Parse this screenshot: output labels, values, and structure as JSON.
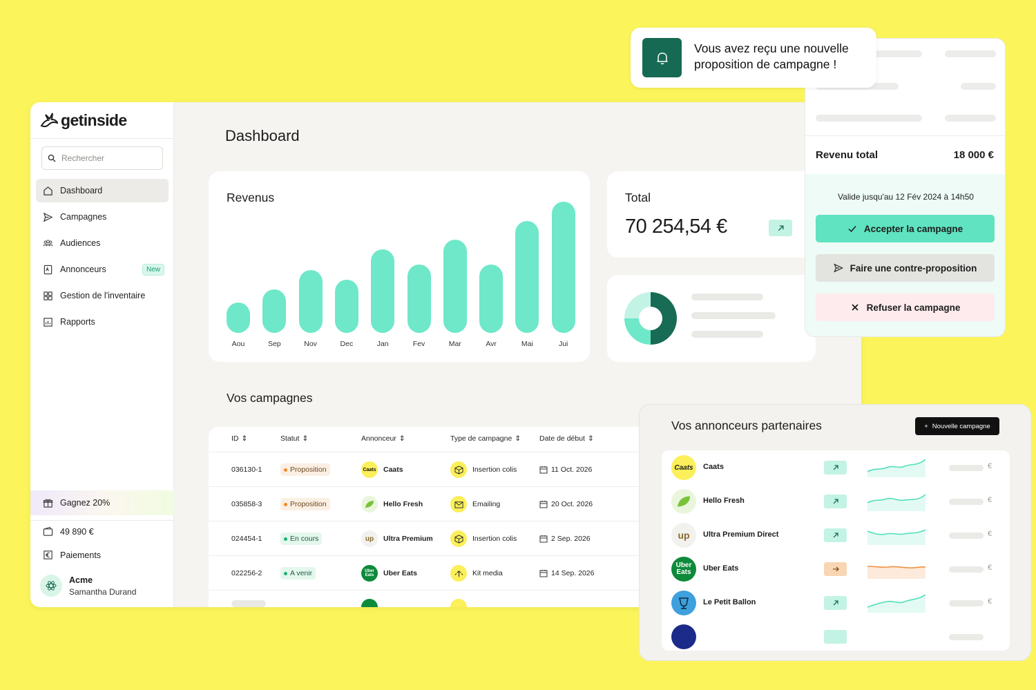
{
  "brand": {
    "name": "getinside"
  },
  "search": {
    "placeholder": "Rechercher"
  },
  "nav": [
    {
      "label": "Dashboard",
      "icon": "home-icon",
      "active": true
    },
    {
      "label": "Campagnes",
      "icon": "send-icon"
    },
    {
      "label": "Audiences",
      "icon": "audience-icon"
    },
    {
      "label": "Annonceurs",
      "icon": "advertiser-icon",
      "badge": "New"
    },
    {
      "label": "Gestion de l'inventaire",
      "icon": "grid-icon"
    },
    {
      "label": "Rapports",
      "icon": "report-icon"
    }
  ],
  "promo": {
    "label": "Gagnez 20%"
  },
  "balance": {
    "label": "49 890 €"
  },
  "payments": {
    "label": "Paiements"
  },
  "user": {
    "org": "Acme",
    "name": "Samantha Durand"
  },
  "page": {
    "title": "Dashboard"
  },
  "revenue": {
    "title": "Revenus"
  },
  "chart_data": {
    "type": "bar",
    "categories": [
      "Aou",
      "Sep",
      "Nov",
      "Dec",
      "Jan",
      "Fev",
      "Mar",
      "Avr",
      "Mai",
      "Jui"
    ],
    "values": [
      22,
      32,
      46,
      39,
      61,
      50,
      68,
      50,
      82,
      96
    ],
    "ylim": [
      0,
      100
    ],
    "color": "#6ee8c9"
  },
  "total": {
    "title": "Total",
    "value": "70 254,54 €"
  },
  "donut": {
    "values": [
      50,
      25,
      25
    ],
    "colors": [
      "#186b54",
      "#6ee8c9",
      "#c3f3e5"
    ]
  },
  "campaigns": {
    "title": "Vos campagnes",
    "columns": [
      "ID",
      "Statut",
      "Annonceur",
      "Type de campagne",
      "Date de début"
    ],
    "rows": [
      {
        "id": "036130-1",
        "status": "Proposition",
        "status_kind": "prop",
        "advertiser": "Caats",
        "type": "Insertion colis",
        "date": "11 Oct. 2026"
      },
      {
        "id": "035858-3",
        "status": "Proposition",
        "status_kind": "prop",
        "advertiser": "Hello Fresh",
        "type": "Emailing",
        "date": "20 Oct. 2026"
      },
      {
        "id": "024454-1",
        "status": "En cours",
        "status_kind": "cours",
        "advertiser": "Ultra Premium",
        "type": "Insertion colis",
        "date": "2 Sep. 2026"
      },
      {
        "id": "022256-2",
        "status": "A venir",
        "status_kind": "avenir",
        "advertiser": "Uber Eats",
        "type": "Kit media",
        "date": "14 Sep. 2026"
      }
    ]
  },
  "notification": {
    "text": "Vous avez reçu une nouvelle proposition de campagne !"
  },
  "proposal": {
    "revenue_label": "Revenu total",
    "revenue_value": "18 000 €",
    "valid_until": "Valide jusqu'au 12 Fév 2024 à 14h50",
    "accept": "Accepter la campagne",
    "counter": "Faire une contre-proposition",
    "refuse": "Refuser la campagne"
  },
  "partners": {
    "title": "Vos annonceurs partenaires",
    "new_button": "Nouvelle campagne",
    "currency": "€",
    "rows": [
      {
        "name": "Caats",
        "trend": "up"
      },
      {
        "name": "Hello Fresh",
        "trend": "up"
      },
      {
        "name": "Ultra Premium Direct",
        "trend": "up"
      },
      {
        "name": "Uber Eats",
        "trend": "flat"
      },
      {
        "name": "Le Petit Ballon",
        "trend": "up"
      }
    ]
  }
}
